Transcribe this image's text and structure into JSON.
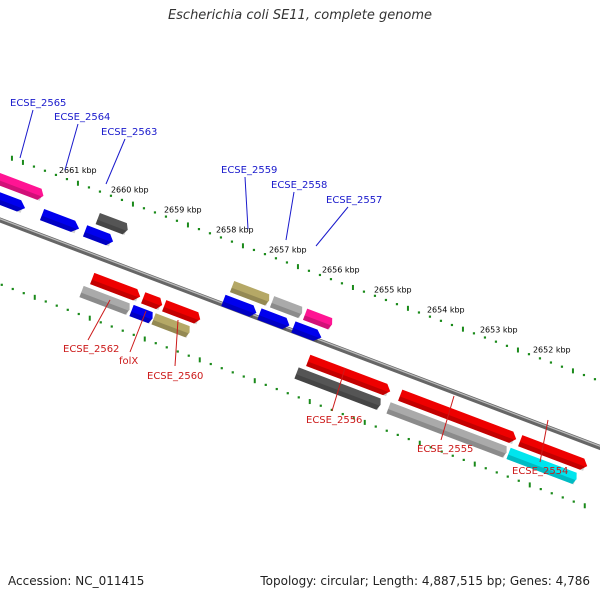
{
  "title": "Escherichia coli SE11, complete genome",
  "accession": "Accession: NC_011415",
  "topology": "Topology: circular; Length: 4,887,515 bp; Genes: 4,786",
  "colors": {
    "backbone": "#808080",
    "tick": "#1a8a1a",
    "label_top": "#1a1acc",
    "label_bottom": "#cc1a1a",
    "kbp_text": "#000000"
  },
  "kbp_labels": [
    {
      "text": "2661 kbp",
      "kb": 2661
    },
    {
      "text": "2660 kbp",
      "kb": 2660
    },
    {
      "text": "2659 kbp",
      "kb": 2659
    },
    {
      "text": "2658 kbp",
      "kb": 2658
    },
    {
      "text": "2657 kbp",
      "kb": 2657
    },
    {
      "text": "2656 kbp",
      "kb": 2656
    },
    {
      "text": "2655 kbp",
      "kb": 2655
    },
    {
      "text": "2654 kbp",
      "kb": 2654
    },
    {
      "text": "2653 kbp",
      "kb": 2653
    },
    {
      "text": "2652 kbp",
      "kb": 2652
    }
  ],
  "genes_top": [
    {
      "name": "ECSE_2565",
      "color": "#ff1493",
      "row": "upper"
    },
    {
      "name": "ECSE_2564",
      "color": "#0000ee",
      "row": "lower"
    },
    {
      "name": "ECSE_2563",
      "color": "#555555",
      "row": "upper"
    },
    {
      "name": "ECSE_2559",
      "color": "#b5a866",
      "row": "upper"
    },
    {
      "name": "ECSE_2558",
      "color": "#aaaaaa",
      "row": "upper"
    },
    {
      "name": "ECSE_2557",
      "color": "#ff1493",
      "row": "upper"
    }
  ],
  "genes_bottom": [
    {
      "name": "ECSE_2562",
      "color": "#aaaaaa"
    },
    {
      "name": "folX",
      "color": "#0000ee"
    },
    {
      "name": "ECSE_2560",
      "color": "#b5a866"
    },
    {
      "name": "ECSE_2556",
      "color": "#555555"
    },
    {
      "name": "ECSE_2555",
      "color": "#aaaaaa"
    },
    {
      "name": "ECSE_2554",
      "color": "#00e5ee"
    }
  ],
  "feature_colors": {
    "blue": "#0000ee",
    "red": "#ee0000",
    "pink": "#ff1493",
    "gray": "#aaaaaa",
    "dark": "#555555",
    "khaki": "#b5a866",
    "cyan": "#00e5ee"
  }
}
